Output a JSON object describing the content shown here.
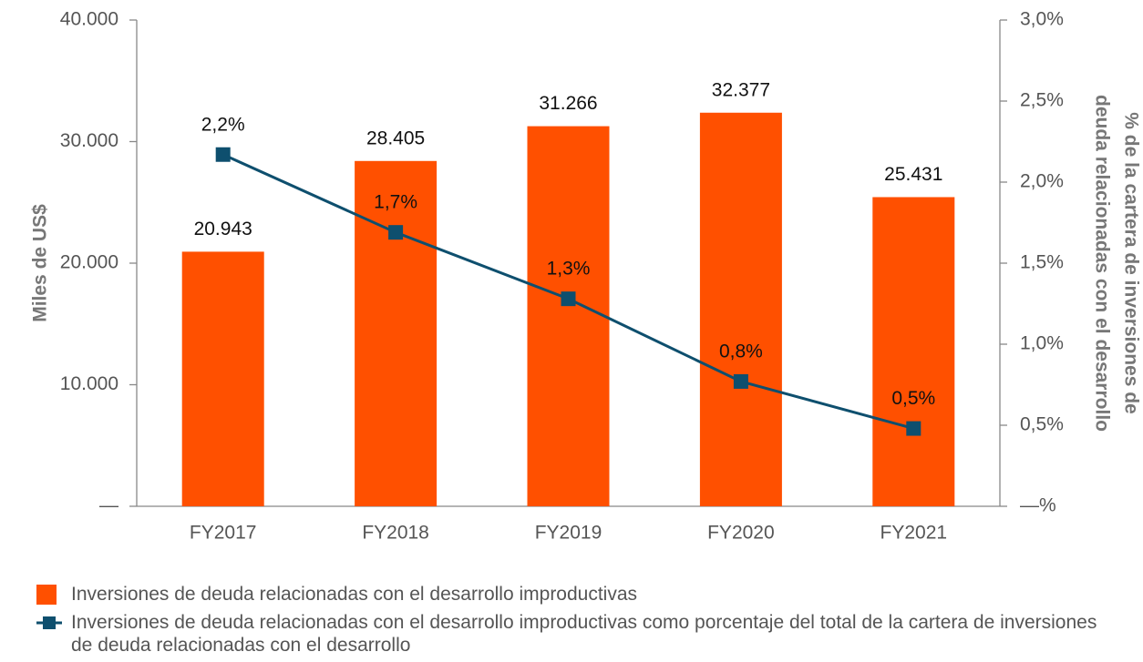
{
  "chart_data": {
    "type": "combo",
    "categories": [
      "FY2017",
      "FY2018",
      "FY2019",
      "FY2020",
      "FY2021"
    ],
    "series": [
      {
        "name": "Inversiones de deuda relacionadas con el desarrollo improductivas",
        "type": "bar",
        "color": "#ff5000",
        "values": [
          20943,
          28405,
          31266,
          32377,
          25431
        ],
        "value_labels": [
          "20.943",
          "28.405",
          "31.266",
          "32.377",
          "25.431"
        ]
      },
      {
        "name": "Inversiones de deuda relacionadas con el desarrollo improductivas como porcentaje del total de la cartera de inversiones de deuda relacionadas con el desarrollo",
        "type": "line",
        "axis": "y2",
        "color": "#0e4f6e",
        "values": [
          2.17,
          1.69,
          1.28,
          0.77,
          0.48
        ],
        "value_labels": [
          "2,2%",
          "1,7%",
          "1,3%",
          "0,8%",
          "0,5%"
        ]
      }
    ],
    "ylabel": "Miles de US$",
    "y2label": [
      "% de la cartera de inversiones de",
      "deuda relacionadas con el desarrollo"
    ],
    "ylim": [
      0,
      40000
    ],
    "yticks": [
      {
        "value": 0,
        "label": "—"
      },
      {
        "value": 10000,
        "label": "10.000"
      },
      {
        "value": 20000,
        "label": "20.000"
      },
      {
        "value": 30000,
        "label": "30.000"
      },
      {
        "value": 40000,
        "label": "40.000"
      }
    ],
    "y2lim": [
      0,
      3
    ],
    "y2ticks": [
      {
        "value": 0,
        "label": "—%"
      },
      {
        "value": 0.5,
        "label": "0,5%"
      },
      {
        "value": 1,
        "label": "1,0%"
      },
      {
        "value": 1.5,
        "label": "1,5%"
      },
      {
        "value": 2,
        "label": "2,0%"
      },
      {
        "value": 2.5,
        "label": "2,5%"
      },
      {
        "value": 3,
        "label": "3,0%"
      }
    ]
  }
}
